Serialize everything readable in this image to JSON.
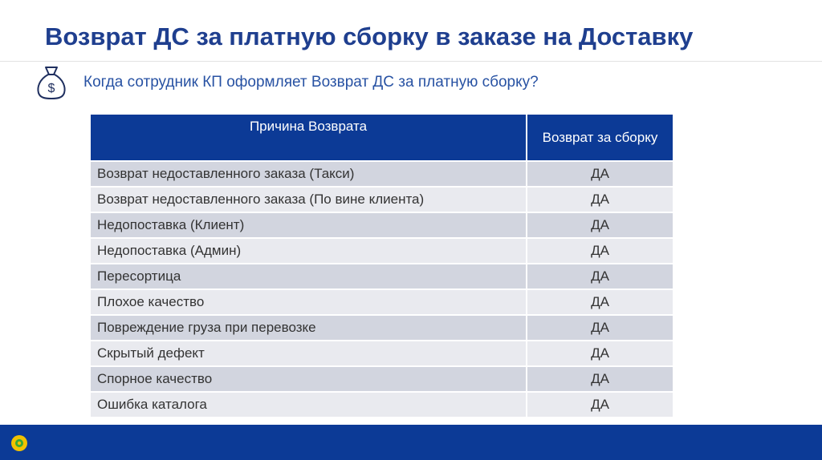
{
  "slide": {
    "title": "Возврат ДС за платную сборку в заказе на Доставку",
    "question": "Когда сотрудник КП оформляет Возврат ДС за платную сборку?"
  },
  "table": {
    "headers": [
      "Причина Возврата",
      "Возврат за сборку"
    ],
    "rows": [
      {
        "reason": "Возврат недоставленного заказа (Такси)",
        "value": "ДА"
      },
      {
        "reason": "Возврат недоставленного заказа (По вине клиента)",
        "value": "ДА"
      },
      {
        "reason": "Недопоставка (Клиент)",
        "value": "ДА"
      },
      {
        "reason": "Недопоставка (Админ)",
        "value": "ДА"
      },
      {
        "reason": "Пересортица",
        "value": "ДА"
      },
      {
        "reason": "Плохое качество",
        "value": "ДА"
      },
      {
        "reason": "Повреждение груза при перевозке",
        "value": "ДА"
      },
      {
        "reason": "Скрытый дефект",
        "value": "ДА"
      },
      {
        "reason": "Спорное качество",
        "value": "ДА"
      },
      {
        "reason": "Ошибка каталога",
        "value": "ДА"
      }
    ]
  },
  "icons": {
    "money_bag": "money-bag-icon",
    "logo": "company-logo-icon"
  },
  "colors": {
    "title": "#1f3f8f",
    "question": "#2852a3",
    "header_bg": "#0c3a96",
    "row_odd": "#d2d5df",
    "row_even": "#e9eaef",
    "footer": "#0c3a96",
    "logo_petals": "#f2c200",
    "logo_center": "#3aa935"
  }
}
